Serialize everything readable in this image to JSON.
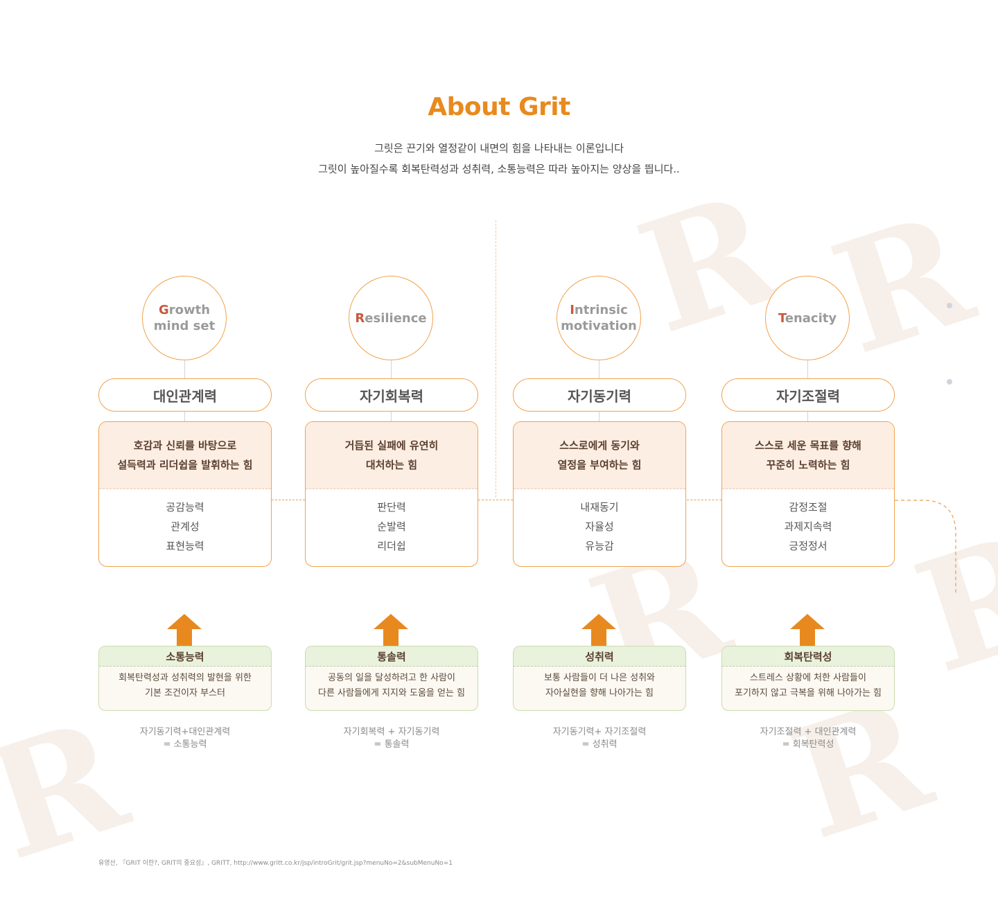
{
  "title": "About Grit",
  "subtitle_line1": "그릿은 끈기와 열정같이 내면의 힘을 나타내는 이론입니다",
  "subtitle_line2": "그릿이 높아질수록 회복탄력성과 성취력, 소통능력은 따라 높아지는 양상을 띕니다..",
  "colors": {
    "accent": "#e88a1e",
    "initial": "#c8573c",
    "card_bg": "#fdeee3",
    "green_header": "#e9f2dc",
    "arrow": "#e8891f"
  },
  "columns": [
    {
      "initial": "G",
      "rest1": "rowth",
      "line2": "mind set",
      "trait": "대인관계력",
      "desc1": "호감과 신뢰를 바탕으로",
      "desc2": "설득력과 리더쉽을 발휘하는 힘",
      "items": [
        "공감능력",
        "관계성",
        "표현능력"
      ],
      "outcome": "소통능력",
      "outcome_desc1": "회복탄력성과 성취력의 발현을 위한",
      "outcome_desc2": "기본 조건이자 부스터",
      "formula1": "자기동기력+대인관계력",
      "formula2": "= 소통능력"
    },
    {
      "initial": "R",
      "rest1": "esilience",
      "line2": "",
      "trait": "자기회복력",
      "desc1": "거듭된 실패에 유연히",
      "desc2": "대처하는 힘",
      "items": [
        "판단력",
        "순발력",
        "리더쉽"
      ],
      "outcome": "통솔력",
      "outcome_desc1": "공동의 일을 달성하려고 한 사람이",
      "outcome_desc2": "다른 사람들에게 지지와 도움을 얻는 힘",
      "formula1": "자기회복력 + 자기동기력",
      "formula2": "= 통솔력"
    },
    {
      "initial": "I",
      "rest1": "ntrinsic",
      "line2": "motivation",
      "trait": "자기동기력",
      "desc1": "스스로에게 동기와",
      "desc2": "열정을 부여하는 힘",
      "items": [
        "내재동기",
        "자율성",
        "유능감"
      ],
      "outcome": "성취력",
      "outcome_desc1": "보통 사람들이 더 나은 성취와",
      "outcome_desc2": "자아실현을 향해 나아가는 힘",
      "formula1": "자기동기력+ 자기조절력",
      "formula2": "= 성취력"
    },
    {
      "initial": "T",
      "rest1": "enacity",
      "line2": "",
      "trait": "자기조절력",
      "desc1": "스스로 세운 목표를 향해",
      "desc2": "꾸준히 노력하는 힘",
      "items": [
        "감정조절",
        "과제지속력",
        "긍정정서"
      ],
      "outcome": "회복탄력성",
      "outcome_desc1": "스트레스 상황에 처한 사람들이",
      "outcome_desc2": "포기하지 않고 극복을 위해 나아가는 힘",
      "formula1": "자기조절력 + 대인관계력",
      "formula2": "= 회복탄력성"
    }
  ],
  "source": "유영산, 『GRIT 이란?, GRIT의 중요성』, GRITT, http://www.gritt.co.kr/jsp/introGrit/grit.jsp?menuNo=2&subMenuNo=1"
}
